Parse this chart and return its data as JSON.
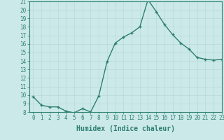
{
  "x": [
    0,
    1,
    2,
    3,
    4,
    5,
    6,
    7,
    8,
    9,
    10,
    11,
    12,
    13,
    14,
    15,
    16,
    17,
    18,
    19,
    20,
    21,
    22,
    23
  ],
  "y": [
    9.8,
    8.8,
    8.6,
    8.6,
    8.1,
    7.9,
    8.4,
    8.0,
    9.9,
    13.9,
    16.1,
    16.8,
    17.3,
    18.0,
    21.2,
    19.8,
    18.3,
    17.1,
    16.1,
    15.4,
    14.4,
    14.2,
    14.1,
    14.2
  ],
  "line_color": "#2d7f72",
  "marker_color": "#2d7f72",
  "bg_color": "#cce9e9",
  "grid_color": "#b8d8d8",
  "xlabel": "Humidex (Indice chaleur)",
  "ylim": [
    8,
    21
  ],
  "xlim": [
    -0.5,
    23
  ],
  "yticks": [
    8,
    9,
    10,
    11,
    12,
    13,
    14,
    15,
    16,
    17,
    18,
    19,
    20,
    21
  ],
  "xticks": [
    0,
    1,
    2,
    3,
    4,
    5,
    6,
    7,
    8,
    9,
    10,
    11,
    12,
    13,
    14,
    15,
    16,
    17,
    18,
    19,
    20,
    21,
    22,
    23
  ],
  "axis_color": "#2d7f72",
  "tick_color": "#2d7f72",
  "label_color": "#2d7f72",
  "xlabel_fontsize": 7,
  "tick_fontsize": 5.5,
  "linewidth": 1.0,
  "markersize": 3.0
}
